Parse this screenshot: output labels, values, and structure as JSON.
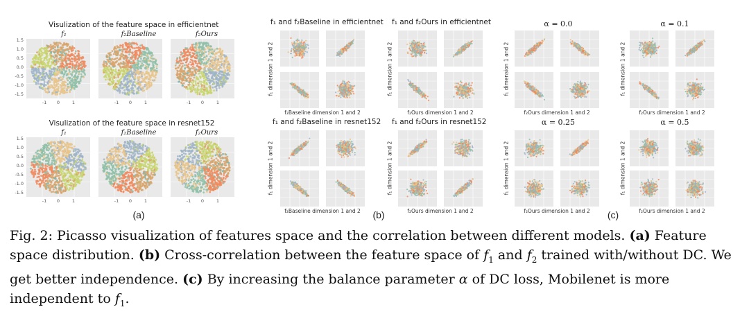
{
  "panel_a": {
    "title_efficientnet": "Visulization of the feature space in efficientnet",
    "title_resnet152": "Visulization of the feature space in resnet152",
    "subtitles": [
      "f₁",
      "f₂Baseline",
      "f₂Ours"
    ],
    "yticks": [
      "1.5",
      "1.0",
      "0.5",
      "0.0",
      "-0.5",
      "-1.0",
      "-1.5"
    ],
    "xticks": [
      "-1",
      "0",
      "1"
    ],
    "label": "(a)"
  },
  "panel_b": {
    "title_eff_base": "f₁ and f₂Baseline in efficientnet",
    "title_eff_ours": "f₁ and f₂Ours in efficientnet",
    "title_res_base": "f₁ and f₂Baseline in resnet152",
    "title_res_ours": "f₁ and f₂Ours in resnet152",
    "ylabel": "f₁ dimension 1 and 2",
    "xlabel_base": "f₂Baseline dimension 1 and 2",
    "xlabel_ours": "f₂Ours dimension 1 and 2",
    "label": "(b)"
  },
  "panel_c": {
    "alphas": [
      "α = 0.0",
      "α = 0.1",
      "α = 0.25",
      "α = 0.5"
    ],
    "ylabel": "f₁ dimension 1 and 2",
    "xlabel": "f₂Ours dimension 1 and 2",
    "label": "(c)"
  },
  "caption": {
    "fig_label": "Fig. 2:",
    "intro": " Picasso visualization of features space and the correlation between different models. ",
    "a_tag": "(a)",
    "a_text": " Feature space distribution. ",
    "b_tag": "(b)",
    "b_text_1": " Cross-correlation between the feature space of ",
    "f1": "f",
    "f1_sub": "1",
    "and": " and ",
    "f2": "f",
    "f2_sub": "2",
    "b_text_2": " trained with/without DC. We get better independence. ",
    "c_tag": "(c)",
    "c_text_1": " By increasing the balance parameter ",
    "alpha": "α",
    "c_text_2": " of DC loss, Mobilenet is more independent to ",
    "f1b": "f",
    "f1b_sub": "1",
    "end": "."
  },
  "colors": [
    "#f08a5d",
    "#8fbfa8",
    "#e8c48a",
    "#9fb4c8",
    "#c8d66e",
    "#d9a56b",
    "#7ab8b0",
    "#e6a0a0"
  ]
}
